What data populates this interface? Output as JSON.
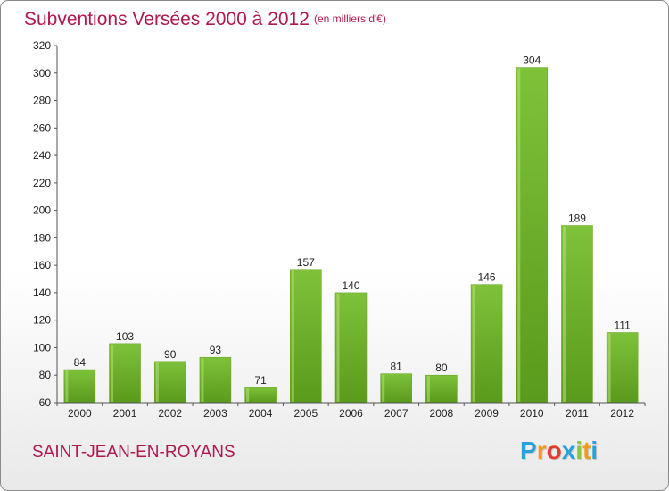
{
  "header": {
    "title": "Subventions Versées 2000 à 2012",
    "subtitle": "(en milliers d'€)"
  },
  "footer": {
    "commune": "SAINT-JEAN-EN-ROYANS",
    "logo": {
      "letters": [
        "P",
        "r",
        "o",
        "x",
        "i",
        "t",
        "i"
      ],
      "colors": [
        "#2aa0d8",
        "#f29a1f",
        "#e63b2e",
        "#2aa0d8",
        "#8cc63f",
        "#f29a1f",
        "#2aa0d8"
      ]
    }
  },
  "chart_data": {
    "type": "bar",
    "categories": [
      "2000",
      "2001",
      "2002",
      "2003",
      "2004",
      "2005",
      "2006",
      "2007",
      "2008",
      "2009",
      "2010",
      "2011",
      "2012"
    ],
    "values": [
      84,
      103,
      90,
      93,
      71,
      157,
      140,
      81,
      80,
      146,
      304,
      189,
      111
    ],
    "title": "Subventions Versées 2000 à 2012",
    "subtitle": "(en milliers d'€)",
    "ylim": [
      60,
      320
    ],
    "yticks": [
      60,
      80,
      100,
      120,
      140,
      160,
      180,
      200,
      220,
      240,
      260,
      280,
      300,
      320
    ],
    "grid": false,
    "bar_color": "#7ec23a",
    "bar_color_dark": "#5a9a1c"
  }
}
